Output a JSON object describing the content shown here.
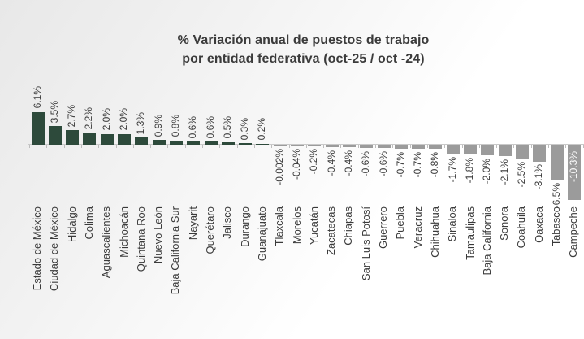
{
  "chart": {
    "title_line1": "% Variación anual de puestos de trabajo",
    "title_line2": "por entidad federativa (oct-25 / oct -24)"
  },
  "chart_data": {
    "type": "bar",
    "title": "% Variación anual de puestos de trabajo por entidad federativa (oct-25 / oct -24)",
    "xlabel": "",
    "ylabel": "",
    "grid": false,
    "legend": null,
    "ylim": [
      -10.3,
      6.1
    ],
    "orientation": "vertical",
    "categories": [
      "Estado de México",
      "Ciudad de México",
      "Hidalgo",
      "Colima",
      "Aguascalientes",
      "Michoacán",
      "Quintana Roo",
      "Nuevo León",
      "Baja California Sur",
      "Nayarit",
      "Querétaro",
      "Jalisco",
      "Durango",
      "Guanajuato",
      "Tlaxcala",
      "Morelos",
      "Yucatán",
      "Zacatecas",
      "Chiapas",
      "San Luis Potosí",
      "Guerrero",
      "Puebla",
      "Veracruz",
      "Chihuahua",
      "Sinaloa",
      "Tamaulipas",
      "Baja California",
      "Sonora",
      "Coahuila",
      "Oaxaca",
      "Tabasco",
      "Campeche"
    ],
    "values": [
      6.1,
      3.5,
      2.7,
      2.2,
      2.0,
      2.0,
      1.3,
      0.9,
      0.8,
      0.6,
      0.6,
      0.5,
      0.3,
      0.2,
      -0.002,
      -0.04,
      -0.2,
      -0.4,
      -0.4,
      -0.6,
      -0.6,
      -0.7,
      -0.7,
      -0.8,
      -1.7,
      -1.8,
      -2.0,
      -2.1,
      -2.5,
      -3.1,
      -6.5,
      -10.3
    ],
    "labels": [
      "6.1%",
      "3.5%",
      "2.7%",
      "2.2%",
      "2.0%",
      "2.0%",
      "1.3%",
      "0.9%",
      "0.8%",
      "0.6%",
      "0.6%",
      "0.5%",
      "0.3%",
      "0.2%",
      "-0.002%",
      "-0.04%",
      "-0.2%",
      "-0.4%",
      "-0.4%",
      "-0.6%",
      "-0.6%",
      "-0.7%",
      "-0.7%",
      "-0.8%",
      "-1.7%",
      "-1.8%",
      "-2.0%",
      "-2.1%",
      "-2.5%",
      "-3.1%",
      "-6.5%",
      "-10.3%"
    ],
    "positive_bar_color": "#2d4a3b",
    "negative_bar_color": "#9b9b9b",
    "axis_color": "#c9c9c9",
    "label_color": "#3a3a3a",
    "inside_end_label": {
      "category": "Campeche",
      "text_color": "#ffffff"
    }
  }
}
